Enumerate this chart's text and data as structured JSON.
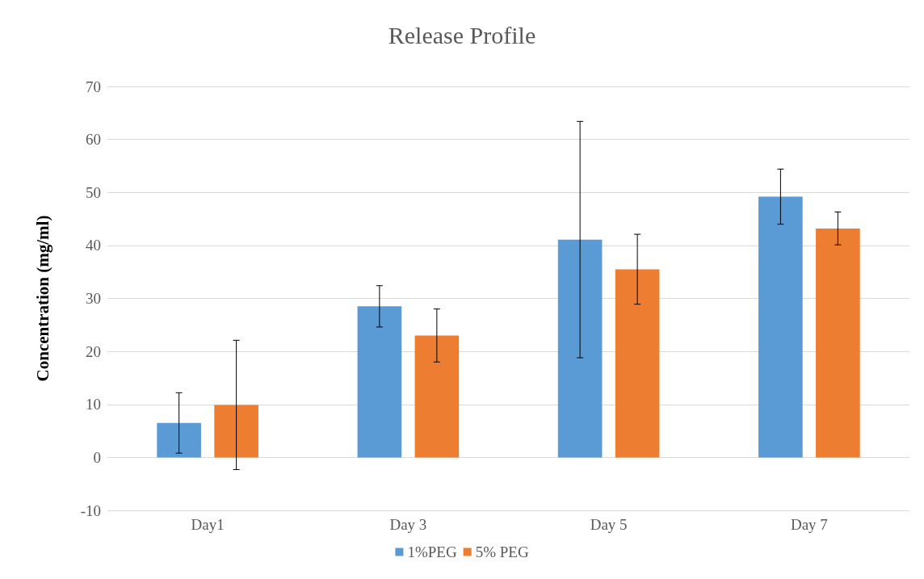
{
  "chart_data": {
    "type": "bar",
    "title": "Release Profile",
    "ylabel": "Concentration (mg/ml)",
    "categories": [
      "Day1",
      "Day 3",
      "Day 5",
      "Day 7"
    ],
    "series": [
      {
        "name": "1%PEG",
        "color": "#5b9bd5",
        "values": [
          6.5,
          28.5,
          41.1,
          49.2
        ],
        "errors": [
          5.7,
          3.9,
          22.3,
          5.2
        ]
      },
      {
        "name": "5% PEG",
        "color": "#ed7d31",
        "values": [
          9.9,
          23.0,
          35.5,
          43.2
        ],
        "errors": [
          12.2,
          5.0,
          6.6,
          3.1
        ]
      }
    ],
    "ylim": [
      -10,
      70
    ],
    "yticks": [
      -10,
      0,
      10,
      20,
      30,
      40,
      50,
      60,
      70
    ],
    "grid": "y",
    "legend": "bottom"
  }
}
